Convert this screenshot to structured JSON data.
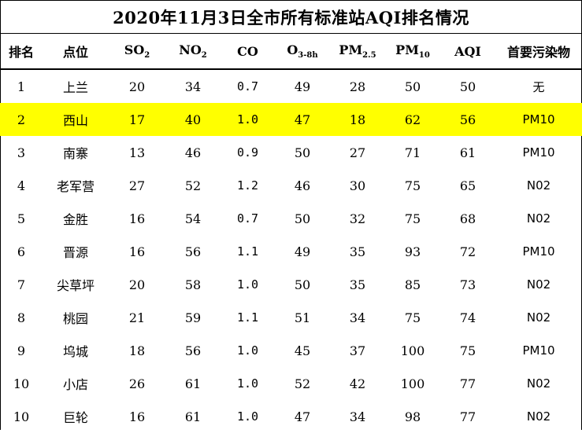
{
  "title": "2020年11月3日全市所有标准站AQI排名情况",
  "headers": {
    "rank": "排名",
    "site": "点位",
    "so2_base": "SO",
    "so2_sub": "2",
    "no2_base": "NO",
    "no2_sub": "2",
    "co": "CO",
    "o3_base": "O",
    "o3_sub": "3-8h",
    "pm25_base": "PM",
    "pm25_sub": "2.5",
    "pm10_base": "PM",
    "pm10_sub": "10",
    "aqi": "AQI",
    "primary": "首要污染物"
  },
  "rows": [
    {
      "rank": "1",
      "site": "上兰",
      "so2": "20",
      "no2": "34",
      "co": "0.7",
      "o3": "49",
      "pm25": "28",
      "pm10": "50",
      "aqi": "50",
      "primary": "无",
      "highlight": false
    },
    {
      "rank": "2",
      "site": "西山",
      "so2": "17",
      "no2": "40",
      "co": "1.0",
      "o3": "47",
      "pm25": "18",
      "pm10": "62",
      "aqi": "56",
      "primary": "PM10",
      "highlight": true
    },
    {
      "rank": "3",
      "site": "南寨",
      "so2": "13",
      "no2": "46",
      "co": "0.9",
      "o3": "50",
      "pm25": "27",
      "pm10": "71",
      "aqi": "61",
      "primary": "PM10",
      "highlight": false
    },
    {
      "rank": "4",
      "site": "老军营",
      "so2": "27",
      "no2": "52",
      "co": "1.2",
      "o3": "46",
      "pm25": "30",
      "pm10": "75",
      "aqi": "65",
      "primary": "N02",
      "highlight": false
    },
    {
      "rank": "5",
      "site": "金胜",
      "so2": "16",
      "no2": "54",
      "co": "0.7",
      "o3": "50",
      "pm25": "32",
      "pm10": "75",
      "aqi": "68",
      "primary": "N02",
      "highlight": false
    },
    {
      "rank": "6",
      "site": "晋源",
      "so2": "16",
      "no2": "56",
      "co": "1.1",
      "o3": "49",
      "pm25": "35",
      "pm10": "93",
      "aqi": "72",
      "primary": "PM10",
      "highlight": false
    },
    {
      "rank": "7",
      "site": "尖草坪",
      "so2": "20",
      "no2": "58",
      "co": "1.0",
      "o3": "50",
      "pm25": "35",
      "pm10": "85",
      "aqi": "73",
      "primary": "N02",
      "highlight": false
    },
    {
      "rank": "8",
      "site": "桃园",
      "so2": "21",
      "no2": "59",
      "co": "1.1",
      "o3": "51",
      "pm25": "34",
      "pm10": "75",
      "aqi": "74",
      "primary": "N02",
      "highlight": false
    },
    {
      "rank": "9",
      "site": "坞城",
      "so2": "18",
      "no2": "56",
      "co": "1.0",
      "o3": "45",
      "pm25": "37",
      "pm10": "100",
      "aqi": "75",
      "primary": "PM10",
      "highlight": false
    },
    {
      "rank": "10",
      "site": "小店",
      "so2": "26",
      "no2": "61",
      "co": "1.0",
      "o3": "52",
      "pm25": "42",
      "pm10": "100",
      "aqi": "77",
      "primary": "N02",
      "highlight": false
    },
    {
      "rank": "10",
      "site": "巨轮",
      "so2": "16",
      "no2": "61",
      "co": "1.0",
      "o3": "47",
      "pm25": "34",
      "pm10": "98",
      "aqi": "77",
      "primary": "N02",
      "highlight": false
    }
  ],
  "colors": {
    "highlight": "#ffff00",
    "border": "#000000"
  }
}
